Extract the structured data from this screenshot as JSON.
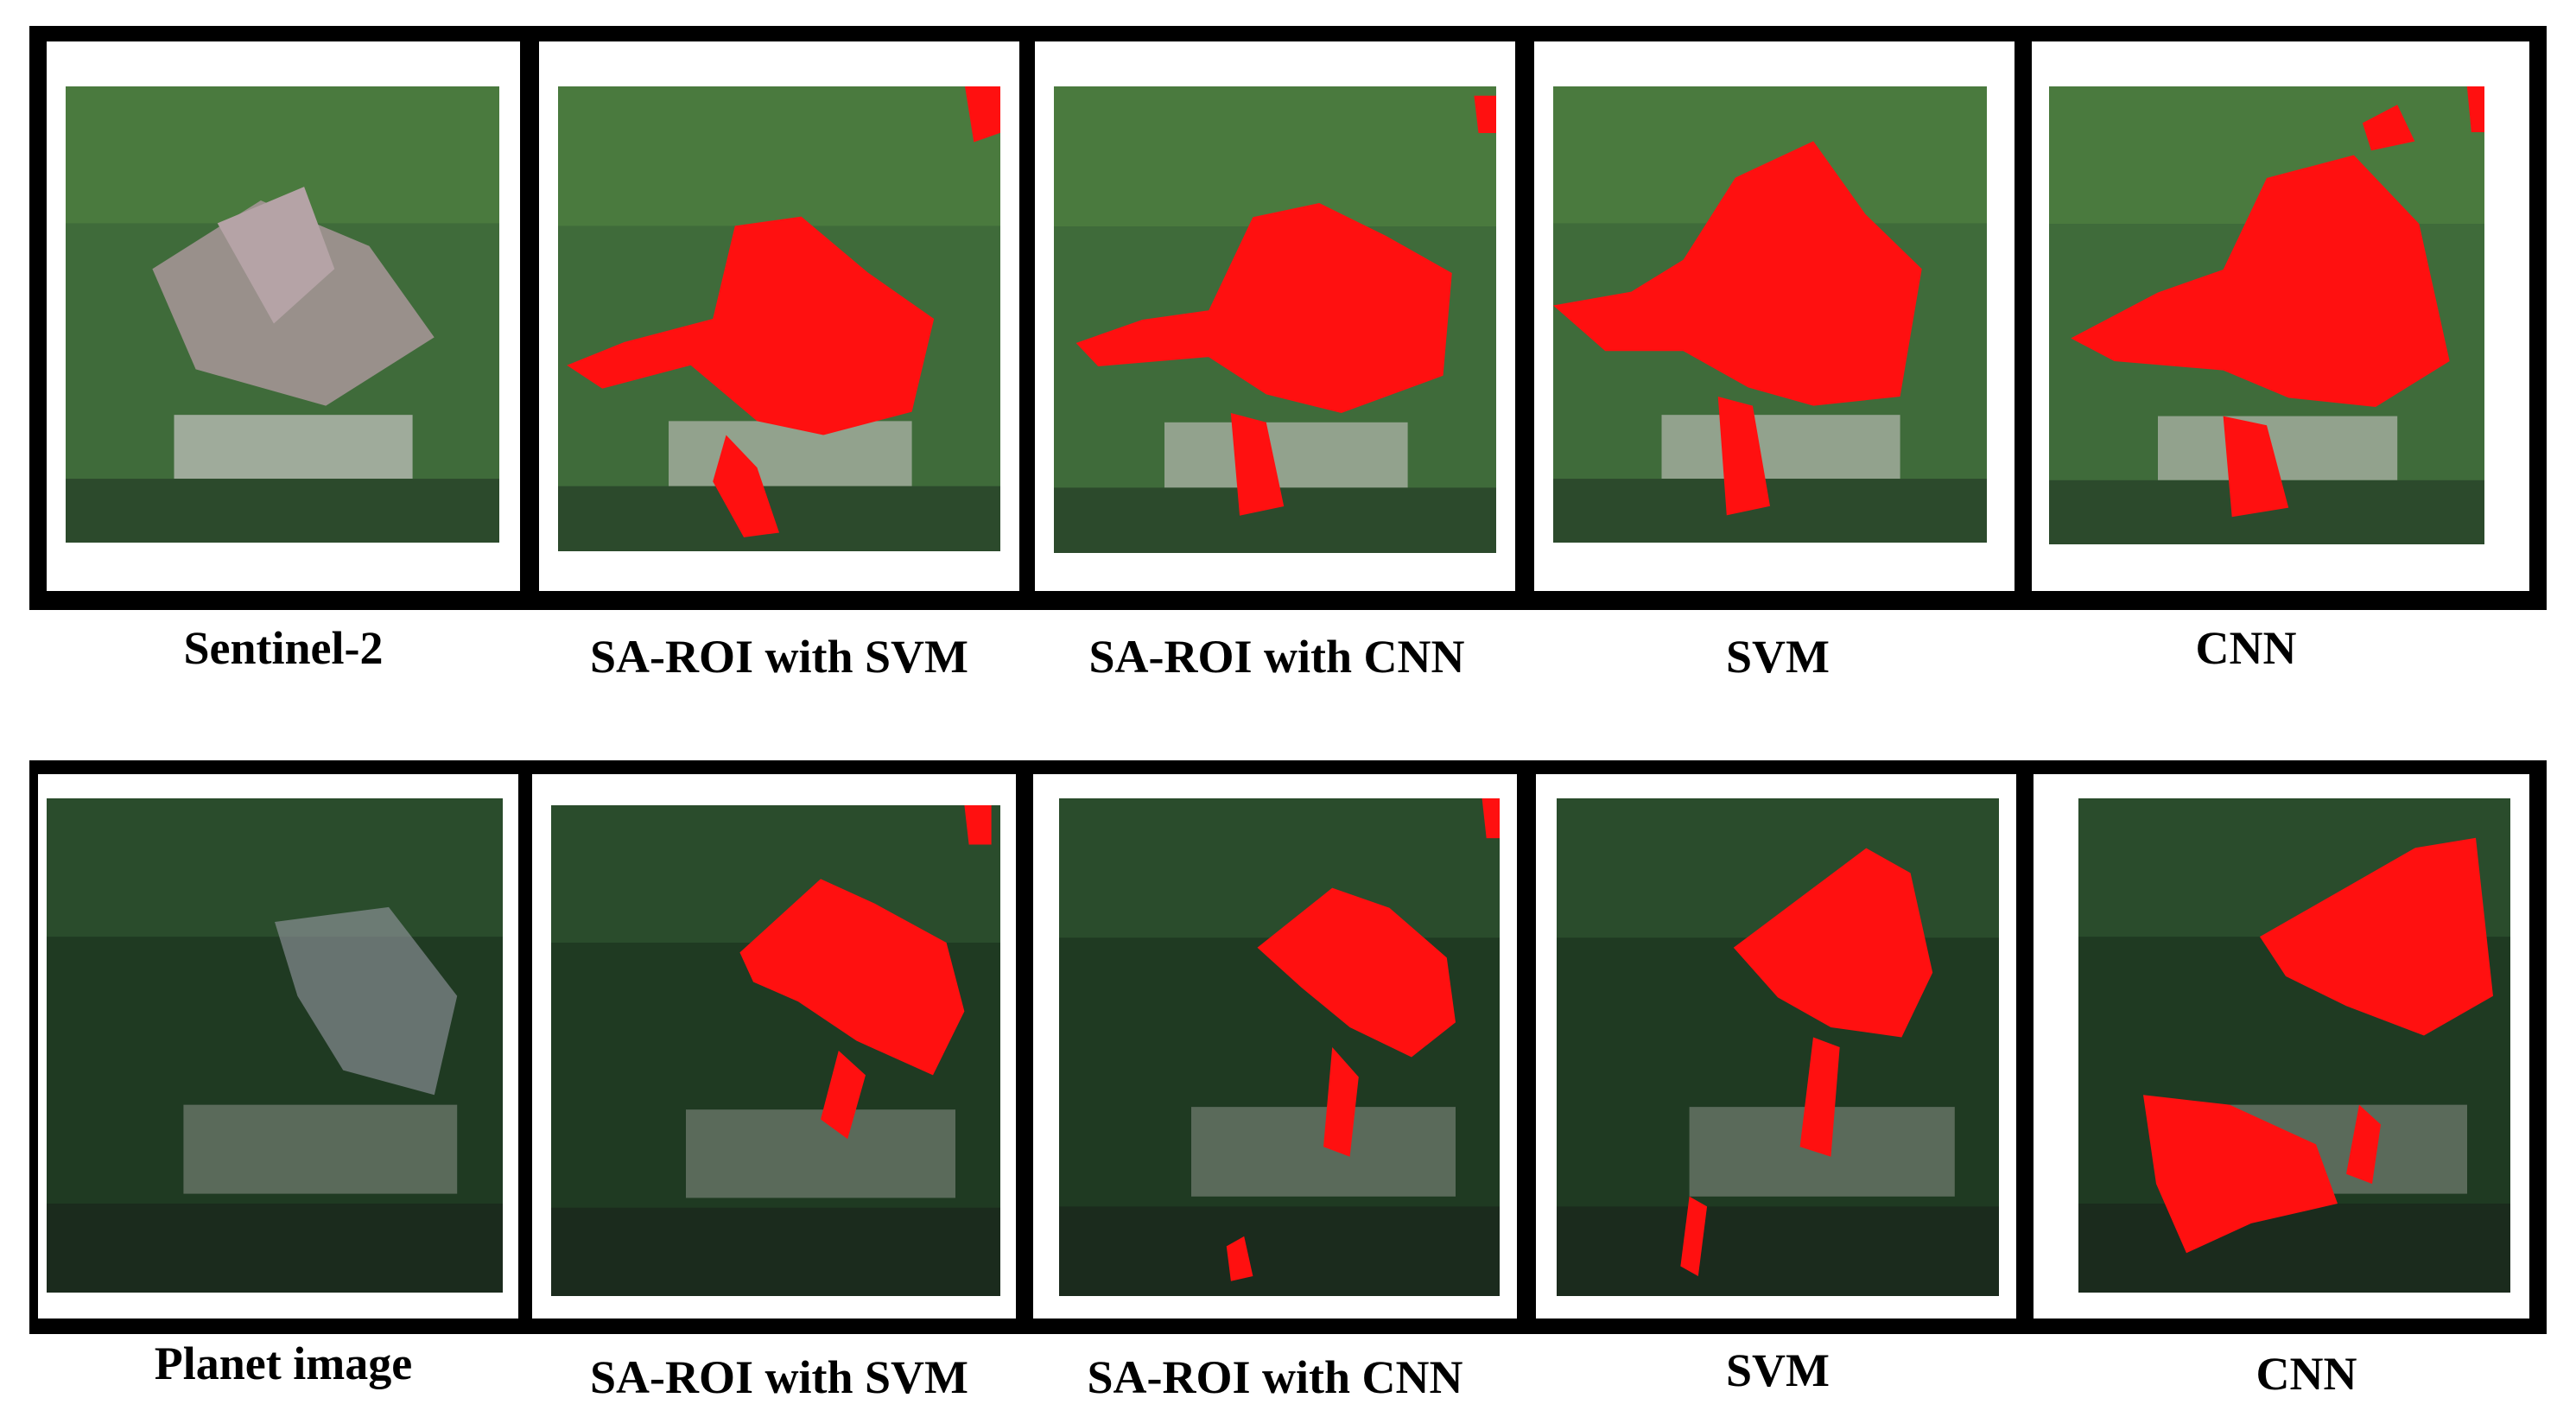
{
  "figure": {
    "rows": [
      {
        "labels": [
          "Sentinel-2",
          "SA-ROI with SVM",
          "SA-ROI with CNN",
          "SVM",
          "CNN"
        ]
      },
      {
        "labels": [
          "Planet image",
          "SA-ROI with SVM",
          "SA-ROI with CNN",
          "SVM",
          "CNN"
        ]
      }
    ]
  },
  "colors": {
    "frame": "#000000",
    "mask": "#ff1010",
    "forest_dark": "#1f3a22",
    "forest": "#3f6b3a",
    "bare": "#a9969a",
    "urban": "#c9c6c4"
  }
}
